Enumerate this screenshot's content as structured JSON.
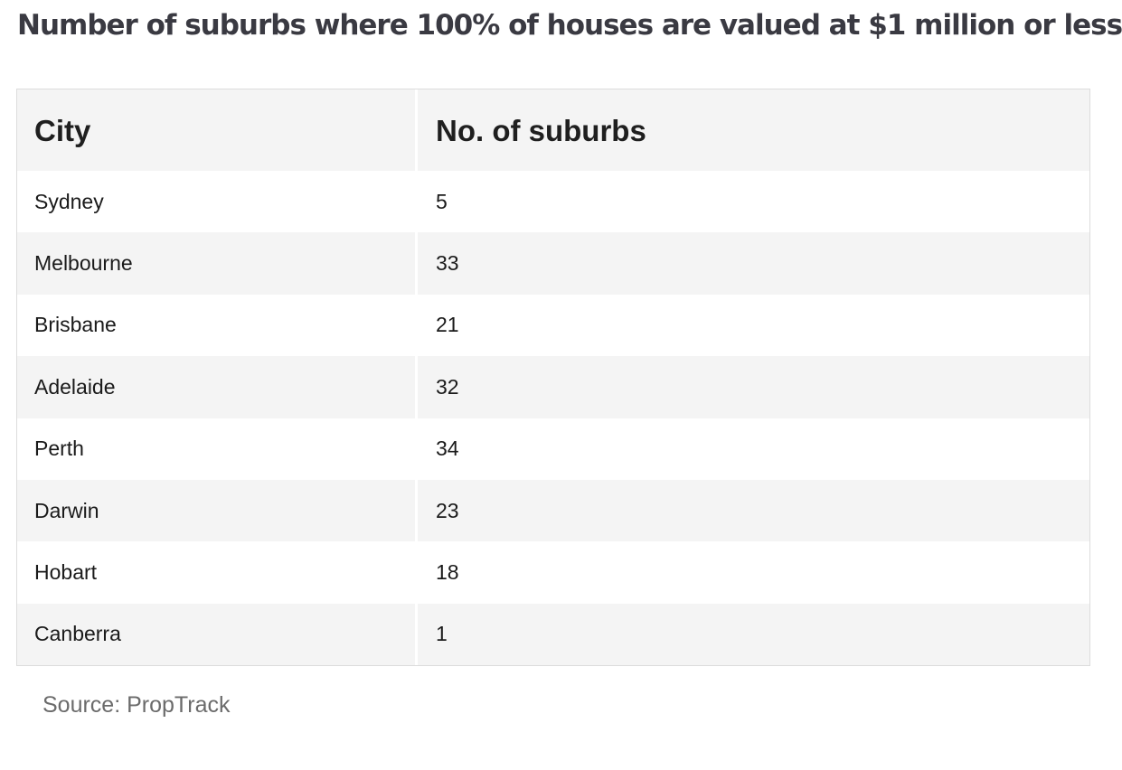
{
  "title": "Number of suburbs where 100% of houses are valued at $1 million or less",
  "table": {
    "headers": [
      "City",
      "No. of suburbs"
    ],
    "rows": [
      [
        "Sydney",
        "5"
      ],
      [
        "Melbourne",
        "33"
      ],
      [
        "Brisbane",
        "21"
      ],
      [
        "Adelaide",
        "32"
      ],
      [
        "Perth",
        "34"
      ],
      [
        "Darwin",
        "23"
      ],
      [
        "Hobart",
        "18"
      ],
      [
        "Canberra",
        "1"
      ]
    ]
  },
  "source": "Source: PropTrack",
  "colors": {
    "header_bg": "#f4f4f4",
    "stripe_bg": "#f4f4f4",
    "border": "#dcdcdc",
    "title_text": "#3a3a42",
    "source_text": "#6b6b6b"
  }
}
